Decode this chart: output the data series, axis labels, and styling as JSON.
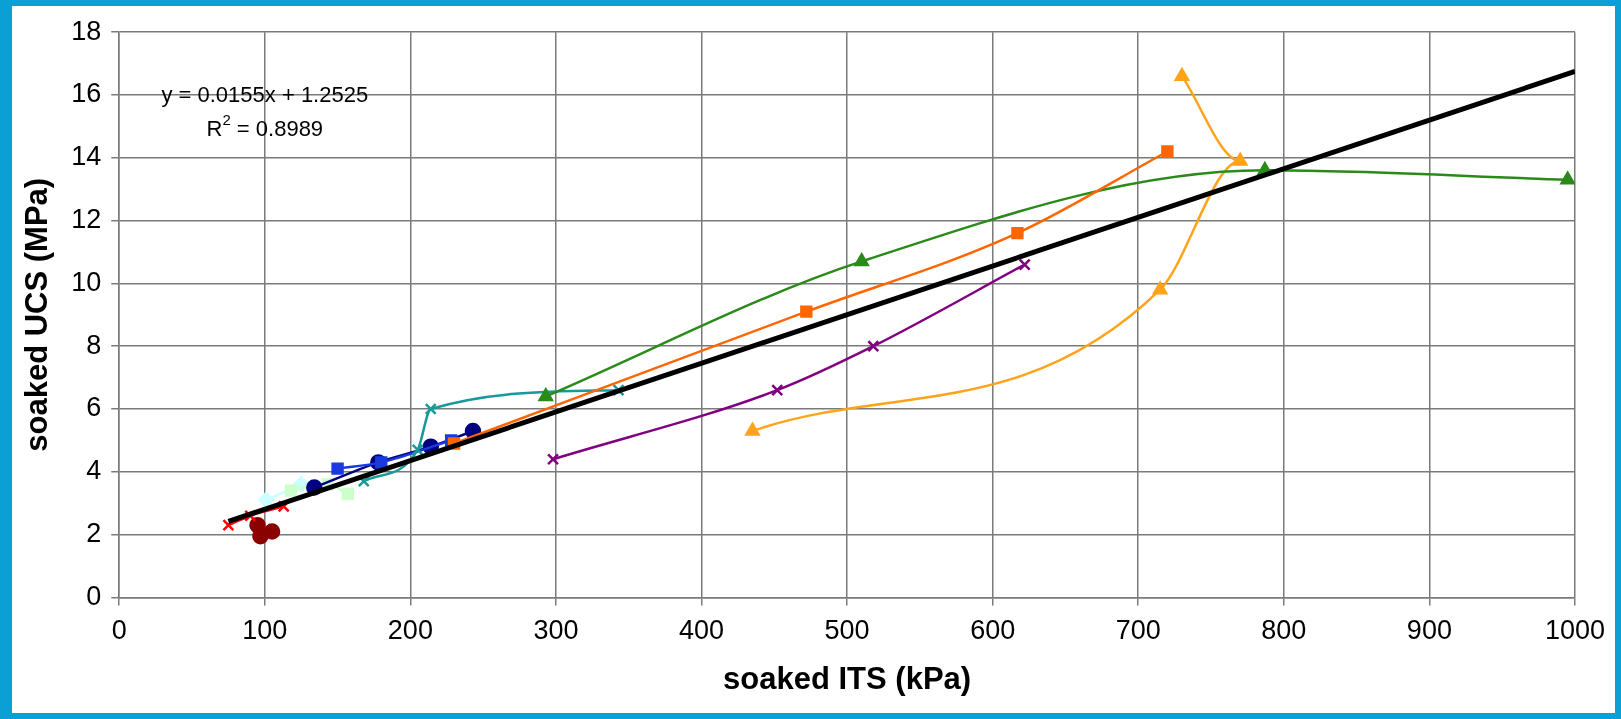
{
  "chart_data": {
    "type": "line",
    "xlabel": "soaked ITS (kPa)",
    "ylabel": "soaked UCS (MPa)",
    "xlim": [
      0,
      1000
    ],
    "xticks": [
      0,
      100,
      200,
      300,
      400,
      500,
      600,
      700,
      800,
      900,
      1000
    ],
    "ylim": [
      0,
      18
    ],
    "yticks": [
      0,
      2,
      4,
      6,
      8,
      10,
      12,
      14,
      16,
      18
    ],
    "grid": true,
    "legend": false,
    "annotations": [
      "y = 0.0155x + 1.2525",
      "R$^{2}$ = 0.8989"
    ],
    "series": [
      {
        "type": "line",
        "marker": "square",
        "color": "#ff6600",
        "x": [
          230,
          472,
          617,
          720
        ],
        "values": [
          4.9,
          9.1,
          11.6,
          14.2
        ]
      },
      {
        "type": "line",
        "marker": "triangle",
        "color": "#2a8a1a",
        "x": [
          293,
          510,
          787,
          995
        ],
        "values": [
          6.4,
          10.7,
          13.6,
          13.3
        ]
      },
      {
        "type": "line",
        "marker": "triangle",
        "color": "#ffa31a",
        "x": [
          435,
          715,
          770,
          730
        ],
        "values": [
          5.3,
          9.8,
          13.9,
          16.6
        ]
      },
      {
        "type": "line",
        "marker": "cross",
        "color": "#800080",
        "x": [
          298,
          452,
          518,
          622
        ],
        "values": [
          4.4,
          6.6,
          8.0,
          10.6
        ]
      },
      {
        "type": "line",
        "marker": "cross",
        "color": "#169a9a",
        "x": [
          168,
          205,
          214,
          343
        ],
        "values": [
          3.7,
          4.7,
          6.0,
          6.6
        ]
      },
      {
        "type": "line",
        "marker": "square",
        "color": "#1a3adf",
        "x": [
          150,
          180,
          228
        ],
        "values": [
          4.1,
          4.3,
          5.0
        ]
      },
      {
        "type": "line",
        "marker": "circle",
        "color": "#000080",
        "x": [
          134,
          178,
          214,
          243
        ],
        "values": [
          3.5,
          4.3,
          4.8,
          5.3
        ]
      },
      {
        "type": "line",
        "marker": "square",
        "color": "#ccffcc",
        "x": [
          118,
          143,
          157
        ],
        "values": [
          3.4,
          3.6,
          3.3
        ]
      },
      {
        "type": "line",
        "marker": "diamond",
        "color": "#ccffff",
        "x": [
          101,
          125
        ],
        "values": [
          3.1,
          3.6
        ]
      },
      {
        "type": "line",
        "marker": "cross",
        "color": "#ff0000",
        "x": [
          75,
          90,
          113
        ],
        "values": [
          2.3,
          2.6,
          2.9
        ]
      },
      {
        "type": "scatter",
        "marker": "circle",
        "color": "#8b0000",
        "x": [
          95,
          97,
          105
        ],
        "values": [
          2.3,
          1.95,
          2.1
        ]
      },
      {
        "type": "line",
        "marker": "none",
        "color": "#000000",
        "x": [
          75,
          1000
        ],
        "values": [
          2.42,
          16.75
        ]
      }
    ]
  }
}
